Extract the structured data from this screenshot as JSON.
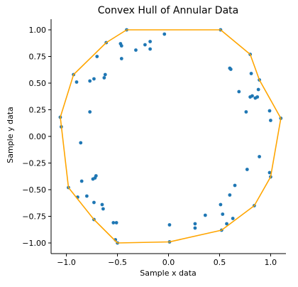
{
  "chart_data": {
    "type": "scatter",
    "title": "Convex Hull of Annular Data",
    "xlabel": "Sample x data",
    "ylabel": "Sample y data",
    "xlim": [
      -1.15,
      1.15
    ],
    "ylim": [
      -1.1,
      1.1
    ],
    "xticks": [
      -1.0,
      -0.5,
      0.0,
      0.5,
      1.0
    ],
    "xtick_labels": [
      "−1.0",
      "−0.5",
      "0.0",
      "0.5",
      "1.0"
    ],
    "yticks": [
      -1.0,
      -0.75,
      -0.5,
      -0.25,
      0.0,
      0.25,
      0.5,
      0.75,
      1.0
    ],
    "ytick_labels": [
      "−1.00",
      "−0.75",
      "−0.50",
      "−0.25",
      "0.00",
      "0.25",
      "0.50",
      "0.75",
      "1.00"
    ],
    "grid": false,
    "points_color": "#1f77b4",
    "hull_color": "#ffa500",
    "points": [
      [
        -0.41,
        1.0
      ],
      [
        -0.32,
        0.81
      ],
      [
        -0.23,
        0.86
      ],
      [
        -0.18,
        0.89
      ],
      [
        -0.18,
        0.82
      ],
      [
        -0.04,
        0.96
      ],
      [
        -0.61,
        0.88
      ],
      [
        -0.47,
        0.87
      ],
      [
        -0.46,
        0.85
      ],
      [
        -0.46,
        0.73
      ],
      [
        -0.7,
        0.75
      ],
      [
        -0.93,
        0.58
      ],
      [
        -0.9,
        0.51
      ],
      [
        -0.77,
        0.52
      ],
      [
        -0.73,
        0.54
      ],
      [
        -0.62,
        0.58
      ],
      [
        -0.63,
        0.55
      ],
      [
        -0.77,
        0.23
      ],
      [
        -1.06,
        0.18
      ],
      [
        -1.05,
        0.09
      ],
      [
        -0.86,
        -0.06
      ],
      [
        -0.71,
        -0.37
      ],
      [
        -0.72,
        -0.39
      ],
      [
        -0.74,
        -0.4
      ],
      [
        -0.85,
        -0.42
      ],
      [
        -0.98,
        -0.48
      ],
      [
        -0.89,
        -0.57
      ],
      [
        -0.8,
        -0.56
      ],
      [
        -0.73,
        -0.62
      ],
      [
        -0.65,
        -0.64
      ],
      [
        -0.64,
        -0.68
      ],
      [
        -0.73,
        -0.78
      ],
      [
        -0.54,
        -0.81
      ],
      [
        -0.51,
        -0.81
      ],
      [
        -0.52,
        -0.97
      ],
      [
        -0.5,
        -1.0
      ],
      [
        0.01,
        -0.99
      ],
      [
        0.01,
        -0.83
      ],
      [
        0.26,
        -0.82
      ],
      [
        0.26,
        -0.86
      ],
      [
        0.36,
        -0.74
      ],
      [
        0.51,
        -0.64
      ],
      [
        0.53,
        -0.73
      ],
      [
        0.52,
        -0.88
      ],
      [
        0.57,
        -0.82
      ],
      [
        0.6,
        -0.55
      ],
      [
        0.63,
        -0.77
      ],
      [
        0.65,
        -0.46
      ],
      [
        0.77,
        -0.31
      ],
      [
        0.84,
        -0.65
      ],
      [
        0.89,
        -0.19
      ],
      [
        0.99,
        -0.34
      ],
      [
        1.0,
        -0.38
      ],
      [
        0.51,
        1.0
      ],
      [
        0.6,
        0.64
      ],
      [
        0.61,
        0.63
      ],
      [
        0.69,
        0.42
      ],
      [
        0.76,
        0.23
      ],
      [
        0.8,
        0.77
      ],
      [
        0.81,
        0.59
      ],
      [
        0.8,
        0.37
      ],
      [
        0.82,
        0.38
      ],
      [
        0.85,
        0.36
      ],
      [
        0.87,
        0.37
      ],
      [
        0.88,
        0.44
      ],
      [
        0.89,
        0.53
      ],
      [
        0.99,
        0.24
      ],
      [
        1.0,
        0.15
      ],
      [
        1.1,
        0.17
      ]
    ],
    "hull": [
      [
        -0.41,
        1.0
      ],
      [
        0.51,
        1.0
      ],
      [
        0.8,
        0.77
      ],
      [
        0.89,
        0.53
      ],
      [
        1.1,
        0.17
      ],
      [
        1.0,
        -0.38
      ],
      [
        0.84,
        -0.65
      ],
      [
        0.52,
        -0.88
      ],
      [
        0.01,
        -0.99
      ],
      [
        -0.5,
        -1.0
      ],
      [
        -0.73,
        -0.78
      ],
      [
        -0.98,
        -0.48
      ],
      [
        -1.06,
        0.18
      ],
      [
        -0.93,
        0.58
      ],
      [
        -0.61,
        0.88
      ],
      [
        -0.41,
        1.0
      ]
    ]
  }
}
